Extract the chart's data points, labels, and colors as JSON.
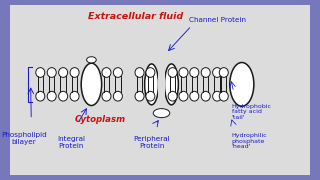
{
  "bg_color": "#7777bb",
  "panel_color": "#dcdcdc",
  "line_color": "#1a1a1a",
  "blue_text": "#1a1acc",
  "red_text": "#cc1111",
  "title_extracellular": "Extracellular fluid",
  "title_cytoplasm": "Cytoplasm",
  "label_phospholipid": "Phospholipid\nbilayer",
  "label_integral": "Integral\nProtein",
  "label_channel": "Channel Protein",
  "label_peripheral": "Peripheral\nProtein",
  "label_hydrophobic": "Hydrophobic\nfatty acid\n'tail'",
  "label_hydrophilic": "Hydrophilic\nphosphate\n'head'",
  "xlim": [
    0,
    10
  ],
  "ylim": [
    0,
    6
  ]
}
